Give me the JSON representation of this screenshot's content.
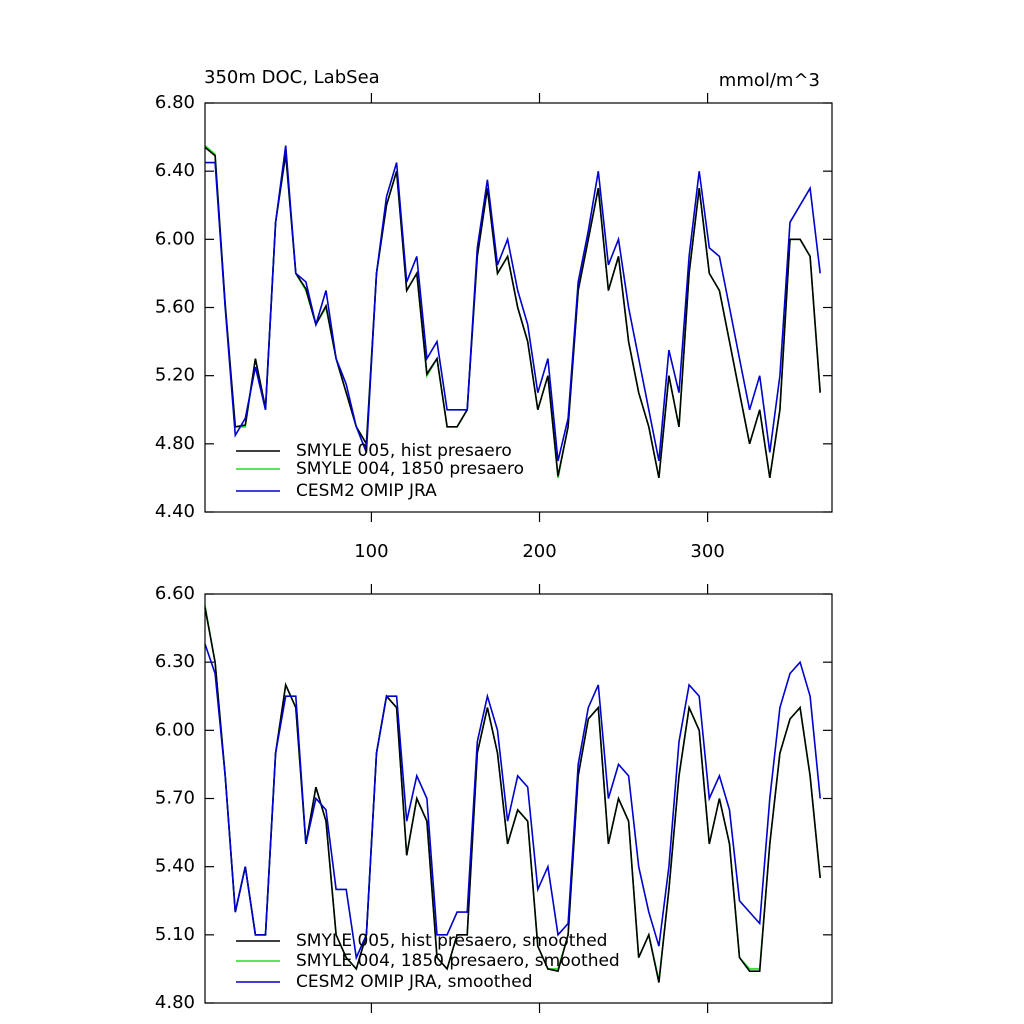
{
  "chart_data": [
    {
      "type": "line",
      "title": "350m DOC, LabSea",
      "units": "mmol/m^3",
      "x": [
        1,
        7,
        13,
        19,
        25,
        31,
        37,
        43,
        49,
        55,
        61,
        67,
        73,
        79,
        85,
        91,
        97,
        103,
        109,
        115,
        121,
        127,
        133,
        139,
        145,
        151,
        157,
        163,
        169,
        175,
        181,
        187,
        193,
        199,
        205,
        211,
        217,
        223,
        229,
        235,
        241,
        247,
        253,
        259,
        265,
        271,
        277,
        283,
        289,
        295,
        301,
        307,
        313,
        319,
        325,
        331,
        337,
        343,
        349,
        355,
        361,
        367
      ],
      "xlim": [
        1,
        374
      ],
      "xticks": [
        100,
        200,
        300
      ],
      "ylim": [
        4.4,
        6.8
      ],
      "yticks": [
        {
          "value": 4.4,
          "label": "4.40"
        },
        {
          "value": 4.8,
          "label": "4.80"
        },
        {
          "value": 5.2,
          "label": "5.20"
        },
        {
          "value": 5.6,
          "label": "5.60"
        },
        {
          "value": 6.0,
          "label": "6.00"
        },
        {
          "value": 6.4,
          "label": "6.40"
        },
        {
          "value": 6.8,
          "label": "6.80"
        }
      ],
      "series": [
        {
          "name": "SMYLE 005, hist presaero",
          "color": "#000000",
          "values": [
            6.54,
            6.49,
            5.62,
            4.9,
            4.91,
            5.3,
            5.01,
            6.1,
            6.5,
            5.8,
            5.71,
            5.5,
            5.61,
            5.3,
            5.1,
            4.9,
            4.8,
            5.8,
            6.2,
            6.4,
            5.7,
            5.8,
            5.21,
            5.3,
            4.9,
            4.9,
            5.0,
            5.9,
            6.3,
            5.8,
            5.9,
            5.6,
            5.4,
            5.0,
            5.2,
            4.61,
            4.9,
            5.7,
            6.0,
            6.3,
            5.7,
            5.9,
            5.4,
            5.1,
            4.9,
            4.6,
            5.2,
            4.9,
            5.8,
            6.3,
            5.8,
            5.7,
            5.4,
            5.1,
            4.8,
            5.0,
            4.6,
            5.0,
            6.0,
            6.0,
            5.9,
            5.1
          ]
        },
        {
          "name": "SMYLE 004, 1850 presaero",
          "color": "#22dd22",
          "values": [
            6.55,
            6.5,
            5.6,
            4.9,
            4.9,
            5.3,
            5.0,
            6.1,
            6.5,
            5.8,
            5.7,
            5.5,
            5.6,
            5.3,
            5.1,
            4.9,
            4.8,
            5.8,
            6.2,
            6.4,
            5.7,
            5.8,
            5.2,
            5.3,
            4.9,
            4.9,
            5.0,
            5.9,
            6.3,
            5.8,
            5.9,
            5.6,
            5.4,
            5.0,
            5.2,
            4.6,
            4.9,
            5.7,
            6.0,
            6.3,
            5.7,
            5.9,
            5.4,
            5.1,
            4.9,
            4.6,
            5.2,
            4.9,
            5.8,
            6.3,
            5.8,
            5.7,
            5.4,
            5.1,
            4.8,
            5.0,
            4.6,
            5.0,
            6.0,
            6.0,
            5.9,
            5.1
          ]
        },
        {
          "name": "CESM2 OMIP JRA",
          "color": "#0000cc",
          "values": [
            6.45,
            6.45,
            5.6,
            4.85,
            4.95,
            5.25,
            5.0,
            6.1,
            6.55,
            5.8,
            5.75,
            5.5,
            5.7,
            5.3,
            5.15,
            4.9,
            4.75,
            5.8,
            6.25,
            6.45,
            5.75,
            5.9,
            5.3,
            5.4,
            5.0,
            5.0,
            5.0,
            5.95,
            6.35,
            5.85,
            6.0,
            5.7,
            5.5,
            5.1,
            5.3,
            4.7,
            4.95,
            5.75,
            6.05,
            6.4,
            5.85,
            6.0,
            5.6,
            5.3,
            5.0,
            4.7,
            5.35,
            5.1,
            5.9,
            6.4,
            5.95,
            5.9,
            5.6,
            5.3,
            5.0,
            5.2,
            4.75,
            5.2,
            6.1,
            6.2,
            6.3,
            5.8
          ]
        }
      ]
    },
    {
      "type": "line",
      "x": [
        1,
        7,
        13,
        19,
        25,
        31,
        37,
        43,
        49,
        55,
        61,
        67,
        73,
        79,
        85,
        91,
        97,
        103,
        109,
        115,
        121,
        127,
        133,
        139,
        145,
        151,
        157,
        163,
        169,
        175,
        181,
        187,
        193,
        199,
        205,
        211,
        217,
        223,
        229,
        235,
        241,
        247,
        253,
        259,
        265,
        271,
        277,
        283,
        289,
        295,
        301,
        307,
        313,
        319,
        325,
        331,
        337,
        343,
        349,
        355,
        361,
        367
      ],
      "xlim": [
        1,
        374
      ],
      "ylim": [
        4.8,
        6.6
      ],
      "yticks": [
        {
          "value": 4.8,
          "label": "4.80"
        },
        {
          "value": 5.1,
          "label": "5.10"
        },
        {
          "value": 5.4,
          "label": "5.40"
        },
        {
          "value": 5.7,
          "label": "5.70"
        },
        {
          "value": 6.0,
          "label": "6.00"
        },
        {
          "value": 6.3,
          "label": "6.30"
        },
        {
          "value": 6.6,
          "label": "6.60"
        }
      ],
      "series": [
        {
          "name": "SMYLE 005, hist presaero, smoothed",
          "color": "#000000",
          "values": [
            6.54,
            6.3,
            5.8,
            5.2,
            5.4,
            5.1,
            5.1,
            5.9,
            6.2,
            6.1,
            5.5,
            5.75,
            5.6,
            5.1,
            5.0,
            4.95,
            5.1,
            5.9,
            6.15,
            6.1,
            5.45,
            5.7,
            5.6,
            5.0,
            4.95,
            5.1,
            5.1,
            5.9,
            6.1,
            5.9,
            5.5,
            5.65,
            5.6,
            5.05,
            4.95,
            4.94,
            5.1,
            5.8,
            6.05,
            6.1,
            5.5,
            5.7,
            5.6,
            5.0,
            5.1,
            4.89,
            5.3,
            5.8,
            6.1,
            6.0,
            5.5,
            5.7,
            5.5,
            5.0,
            4.94,
            4.94,
            5.5,
            5.9,
            6.05,
            6.1,
            5.8,
            5.35
          ]
        },
        {
          "name": "SMYLE 004, 1850 presaero, smoothed",
          "color": "#22dd22",
          "values": [
            6.55,
            6.3,
            5.8,
            5.2,
            5.4,
            5.1,
            5.1,
            5.9,
            6.2,
            6.1,
            5.5,
            5.75,
            5.6,
            5.1,
            5.0,
            4.95,
            5.1,
            5.9,
            6.15,
            6.1,
            5.45,
            5.7,
            5.6,
            5.0,
            4.95,
            5.1,
            5.1,
            5.9,
            6.1,
            5.9,
            5.5,
            5.65,
            5.6,
            5.05,
            4.95,
            4.95,
            5.1,
            5.8,
            6.05,
            6.1,
            5.5,
            5.7,
            5.6,
            5.0,
            5.1,
            4.9,
            5.3,
            5.8,
            6.1,
            6.0,
            5.5,
            5.7,
            5.5,
            5.0,
            4.95,
            4.95,
            5.5,
            5.9,
            6.05,
            6.1,
            5.8,
            5.35
          ]
        },
        {
          "name": "CESM2 OMIP JRA, smoothed",
          "color": "#0000cc",
          "values": [
            6.38,
            6.25,
            5.8,
            5.2,
            5.4,
            5.1,
            5.1,
            5.9,
            6.15,
            6.15,
            5.5,
            5.7,
            5.65,
            5.3,
            5.3,
            5.0,
            5.1,
            5.9,
            6.15,
            6.15,
            5.6,
            5.8,
            5.7,
            5.1,
            5.1,
            5.2,
            5.2,
            5.95,
            6.15,
            6.0,
            5.6,
            5.8,
            5.75,
            5.3,
            5.4,
            5.1,
            5.15,
            5.85,
            6.1,
            6.2,
            5.7,
            5.85,
            5.8,
            5.4,
            5.2,
            5.05,
            5.4,
            5.95,
            6.2,
            6.15,
            5.7,
            5.8,
            5.65,
            5.25,
            5.2,
            5.15,
            5.7,
            6.1,
            6.25,
            6.3,
            6.15,
            5.7
          ]
        }
      ]
    }
  ]
}
